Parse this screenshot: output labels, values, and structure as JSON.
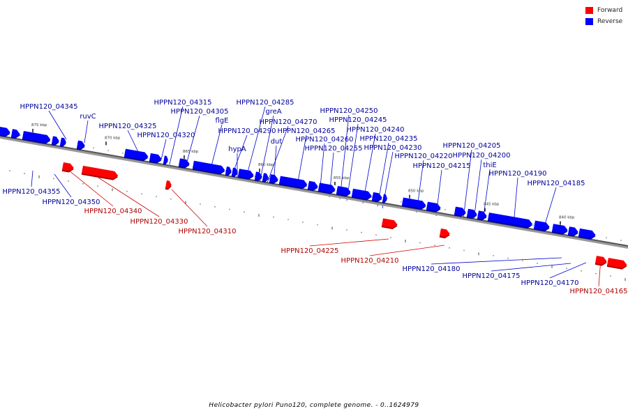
{
  "legend": {
    "forward_label": "Forward",
    "reverse_label": "Reverse",
    "forward_color": "#ff0000",
    "reverse_color": "#0000ff"
  },
  "caption": "Helicobacter pylori Puno120, complete genome. - 0..1624979",
  "scale_labels": [
    "875 kbp",
    "870 kbp",
    "865 kbp",
    "860 kbp",
    "855 kbp",
    "850 kbp",
    "845 kbp",
    "840 kbp"
  ],
  "genes": [
    {
      "id": "HPPN120_04345",
      "strand": "reverse"
    },
    {
      "id": "ruvC",
      "strand": "reverse"
    },
    {
      "id": "HPPN120_04325",
      "strand": "reverse"
    },
    {
      "id": "HPPN120_04320",
      "strand": "reverse"
    },
    {
      "id": "HPPN120_04315",
      "strand": "reverse"
    },
    {
      "id": "HPPN120_04305",
      "strand": "reverse"
    },
    {
      "id": "flgE",
      "strand": "reverse"
    },
    {
      "id": "HPPN120_04290",
      "strand": "reverse"
    },
    {
      "id": "hypA",
      "strand": "reverse"
    },
    {
      "id": "HPPN120_04285",
      "strand": "reverse"
    },
    {
      "id": "greA",
      "strand": "reverse"
    },
    {
      "id": "HPPN120_04270",
      "strand": "reverse"
    },
    {
      "id": "dut",
      "strand": "reverse"
    },
    {
      "id": "HPPN120_04265",
      "strand": "reverse"
    },
    {
      "id": "HPPN120_04260",
      "strand": "reverse"
    },
    {
      "id": "HPPN120_04255",
      "strand": "reverse"
    },
    {
      "id": "HPPN120_04250",
      "strand": "reverse"
    },
    {
      "id": "HPPN120_04245",
      "strand": "reverse"
    },
    {
      "id": "HPPN120_04240",
      "strand": "reverse"
    },
    {
      "id": "HPPN120_04235",
      "strand": "reverse"
    },
    {
      "id": "HPPN120_04230",
      "strand": "reverse"
    },
    {
      "id": "HPPN120_04220",
      "strand": "reverse"
    },
    {
      "id": "HPPN120_04215",
      "strand": "reverse"
    },
    {
      "id": "HPPN120_04205",
      "strand": "reverse"
    },
    {
      "id": "HPPN120_04200",
      "strand": "reverse"
    },
    {
      "id": "thiE",
      "strand": "reverse"
    },
    {
      "id": "HPPN120_04190",
      "strand": "reverse"
    },
    {
      "id": "HPPN120_04185",
      "strand": "reverse"
    },
    {
      "id": "HPPN120_04355",
      "strand": "reverse"
    },
    {
      "id": "HPPN120_04350",
      "strand": "reverse"
    },
    {
      "id": "HPPN120_04180",
      "strand": "reverse"
    },
    {
      "id": "HPPN120_04175",
      "strand": "reverse"
    },
    {
      "id": "HPPN120_04170",
      "strand": "reverse"
    },
    {
      "id": "HPPN120_04340",
      "strand": "forward"
    },
    {
      "id": "HPPN120_04330",
      "strand": "forward"
    },
    {
      "id": "HPPN120_04310",
      "strand": "forward"
    },
    {
      "id": "HPPN120_04225",
      "strand": "forward"
    },
    {
      "id": "HPPN120_04210",
      "strand": "forward"
    },
    {
      "id": "HPPN120_04165",
      "strand": "forward"
    }
  ]
}
